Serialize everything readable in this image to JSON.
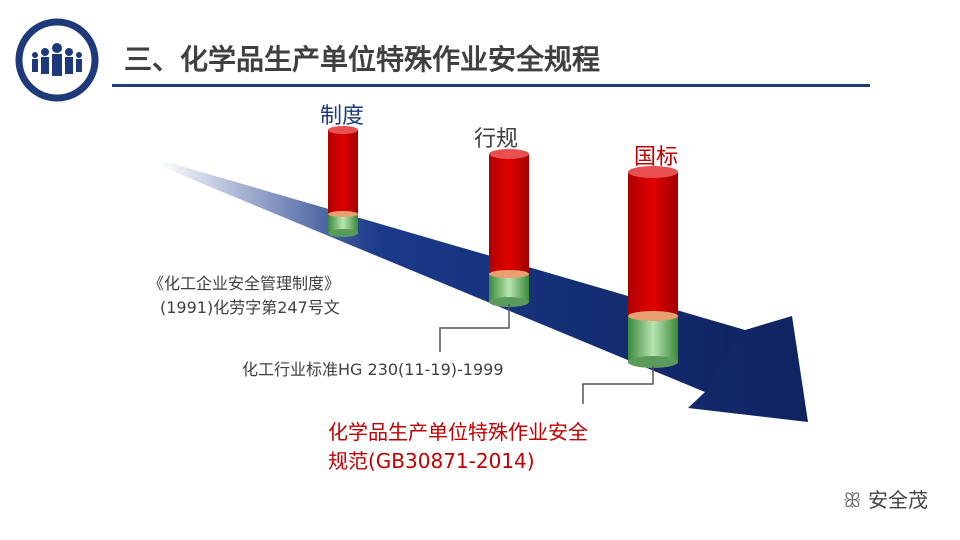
{
  "header": {
    "title": "三、化学品生产单位特殊作业安全规程",
    "icon": "people-group-icon",
    "accent": "#1f3a7a"
  },
  "levels": [
    {
      "label": "制度",
      "color": "#1f3a7a"
    },
    {
      "label": "行规",
      "color": "#404040"
    },
    {
      "label": "国标",
      "color": "#c00000"
    }
  ],
  "notes": {
    "regulation_line1": "《化工企业安全管理制度》",
    "regulation_line2": "(1991)化劳字第247号文",
    "industry": "化工行业标准HG 230(11-19)-1999",
    "national_line1": "化学品生产单位特殊作业安全",
    "national_line2": "规范(GB30871-2014)"
  },
  "watermark": {
    "text": "安全茂",
    "icon": "wechat-icon"
  }
}
